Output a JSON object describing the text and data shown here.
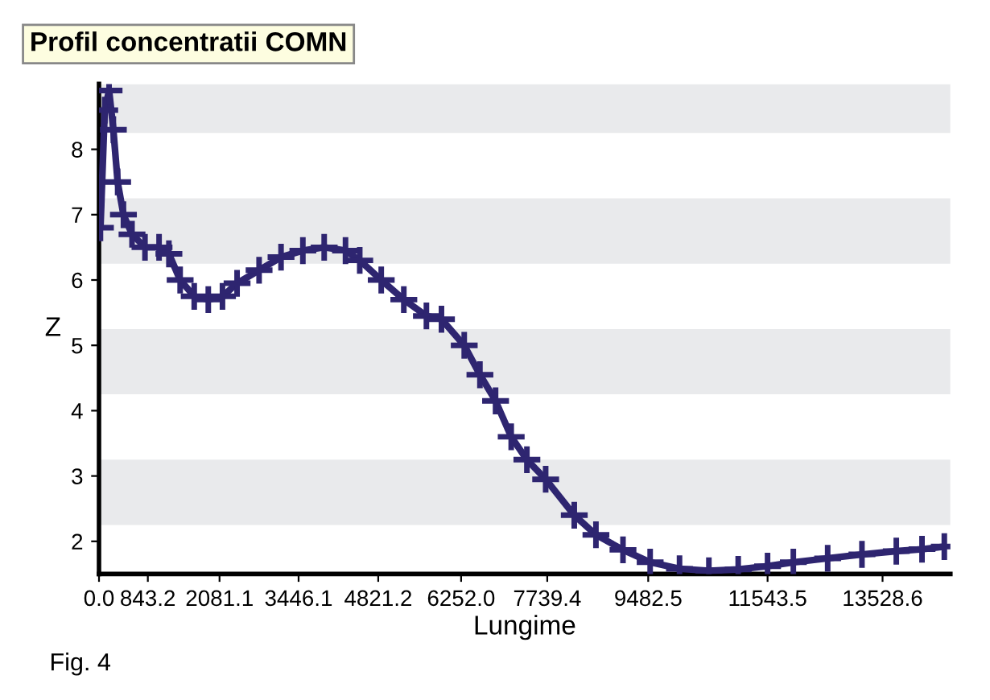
{
  "chart_data": {
    "type": "line",
    "title": "Profil concentratii COMN",
    "xlabel": "Lungime",
    "ylabel": "Z",
    "annotations": [
      "Fig. 4"
    ],
    "x": [
      25,
      99,
      174,
      248,
      322,
      422,
      570,
      794,
      1037,
      1207,
      1401,
      1644,
      1887,
      2132,
      2384,
      2764,
      3143,
      3520,
      3888,
      4256,
      4502,
      4873,
      5263,
      5653,
      5913,
      6306,
      6577,
      6847,
      7117,
      7388,
      7712,
      8206,
      8580,
      9047,
      9516,
      10023,
      10530,
      11036,
      11543,
      11988,
      12581,
      13173,
      13766,
      14210,
      14595
    ],
    "series": [
      {
        "color": "#2e2570",
        "values": [
          6.8,
          8.6,
          8.9,
          8.3,
          7.5,
          7.0,
          6.7,
          6.5,
          6.5,
          6.4,
          6.0,
          5.75,
          5.7,
          5.75,
          5.95,
          6.15,
          6.35,
          6.45,
          6.5,
          6.45,
          6.3,
          6.0,
          5.7,
          5.45,
          5.4,
          5.0,
          4.55,
          4.15,
          3.6,
          3.25,
          2.95,
          2.4,
          2.1,
          1.87,
          1.68,
          1.58,
          1.55,
          1.57,
          1.62,
          1.68,
          1.74,
          1.8,
          1.85,
          1.88,
          1.92
        ]
      }
    ],
    "xlim": [
      0,
      14700
    ],
    "ylim": [
      1.5,
      9
    ],
    "xticks": [
      {
        "value": 0,
        "label": "0.0"
      },
      {
        "value": 843.2,
        "label": "843.2"
      },
      {
        "value": 2081.1,
        "label": "2081.1"
      },
      {
        "value": 3446.1,
        "label": "3446.1"
      },
      {
        "value": 4821.2,
        "label": "4821.2"
      },
      {
        "value": 6252.0,
        "label": "6252.0"
      },
      {
        "value": 7739.4,
        "label": "7739.4"
      },
      {
        "value": 9482.5,
        "label": "9482.5"
      },
      {
        "value": 11543.5,
        "label": "11543.5"
      },
      {
        "value": 13528.6,
        "label": "13528.6"
      }
    ],
    "yticks": [
      2,
      3,
      4,
      5,
      6,
      7,
      8
    ],
    "bands": [
      {
        "axis": "y",
        "from": 8.25,
        "to": 9,
        "color": "#e9eaec"
      },
      {
        "axis": "y",
        "from": 6.25,
        "to": 7.25,
        "color": "#e9eaec"
      },
      {
        "axis": "y",
        "from": 4.25,
        "to": 5.25,
        "color": "#e9eaec"
      },
      {
        "axis": "y",
        "from": 2.25,
        "to": 3.25,
        "color": "#e9eaec"
      }
    ],
    "legend": false,
    "marker": "cross",
    "line_style": "solid"
  }
}
